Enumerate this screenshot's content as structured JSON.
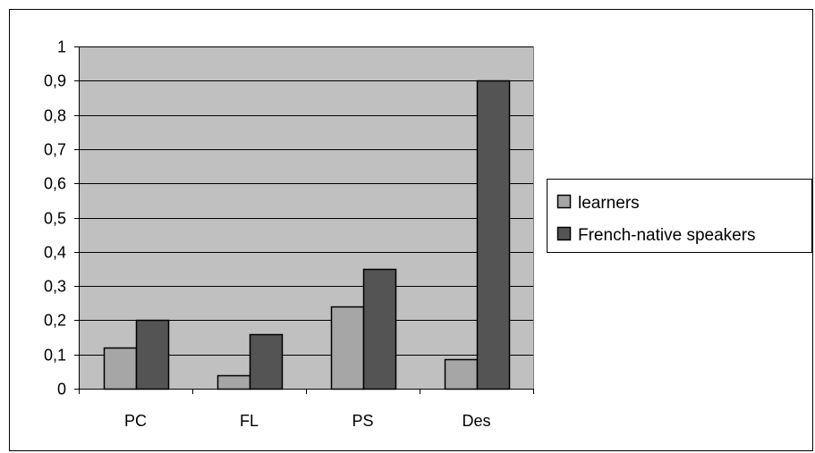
{
  "chart_data": {
    "type": "bar",
    "categories": [
      "PC",
      "FL",
      "PS",
      "Des"
    ],
    "series": [
      {
        "name": "learners",
        "values": [
          0.12,
          0.04,
          0.24,
          0.085
        ],
        "color": "#a6a6a6"
      },
      {
        "name": "French-native speakers",
        "values": [
          0.2,
          0.16,
          0.35,
          0.9
        ],
        "color": "#545454"
      }
    ],
    "ylim": [
      0,
      1
    ],
    "yticks": [
      0,
      0.1,
      0.2,
      0.3,
      0.4,
      0.5,
      0.6,
      0.7,
      0.8,
      0.9,
      1
    ],
    "ytick_labels": [
      "0",
      "0,1",
      "0,2",
      "0,3",
      "0,4",
      "0,5",
      "0,6",
      "0,7",
      "0,8",
      "0,9",
      "1"
    ],
    "plot_background": "#c0c0c0",
    "grid": true,
    "legend": "right"
  }
}
